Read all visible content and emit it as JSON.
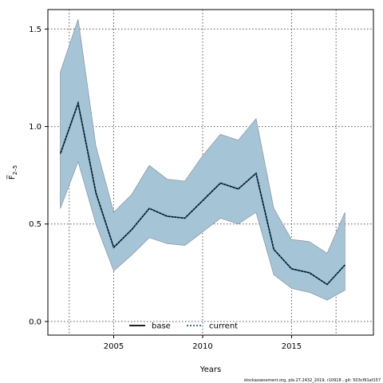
{
  "chart_data": {
    "type": "line",
    "xlabel": "Years",
    "ylabel": "F̅",
    "ylabel_sub": "2–5",
    "xlim": [
      2001.3,
      2019.6
    ],
    "ylim": [
      -0.07,
      1.6
    ],
    "x_ticks": [
      2005,
      2010,
      2015
    ],
    "y_ticks": [
      0.0,
      0.5,
      1.0,
      1.5
    ],
    "y_tick_labels": [
      "0.0",
      "0.5",
      "1.0",
      "1.5"
    ],
    "grid": true,
    "legend_position": "bottom-center",
    "x": [
      2002,
      2003,
      2004,
      2005,
      2006,
      2007,
      2008,
      2009,
      2010,
      2011,
      2012,
      2013,
      2014,
      2015,
      2016,
      2017,
      2018
    ],
    "series": [
      {
        "name": "base",
        "style": "solid",
        "color": "#000000",
        "values": [
          0.86,
          1.12,
          0.66,
          0.38,
          0.47,
          0.58,
          0.54,
          0.53,
          0.62,
          0.71,
          0.68,
          0.76,
          0.37,
          0.27,
          0.25,
          0.19,
          0.29
        ]
      },
      {
        "name": "current",
        "style": "dotted",
        "color": "#1f5f80",
        "values": [
          0.86,
          1.12,
          0.66,
          0.38,
          0.47,
          0.58,
          0.54,
          0.53,
          0.62,
          0.71,
          0.68,
          0.76,
          0.37,
          0.27,
          0.25,
          0.19,
          0.29
        ]
      }
    ],
    "band": {
      "color": "#a5c5d7",
      "upper": [
        1.28,
        1.55,
        0.9,
        0.56,
        0.65,
        0.8,
        0.73,
        0.72,
        0.85,
        0.96,
        0.93,
        1.04,
        0.58,
        0.42,
        0.41,
        0.35,
        0.56
      ],
      "lower": [
        0.58,
        0.82,
        0.5,
        0.26,
        0.34,
        0.43,
        0.4,
        0.39,
        0.46,
        0.53,
        0.5,
        0.56,
        0.24,
        0.17,
        0.15,
        0.11,
        0.16
      ]
    }
  },
  "footer": "stockassessment.org, ple.27.2432_2019, r10918 , git: 503cf91af157"
}
